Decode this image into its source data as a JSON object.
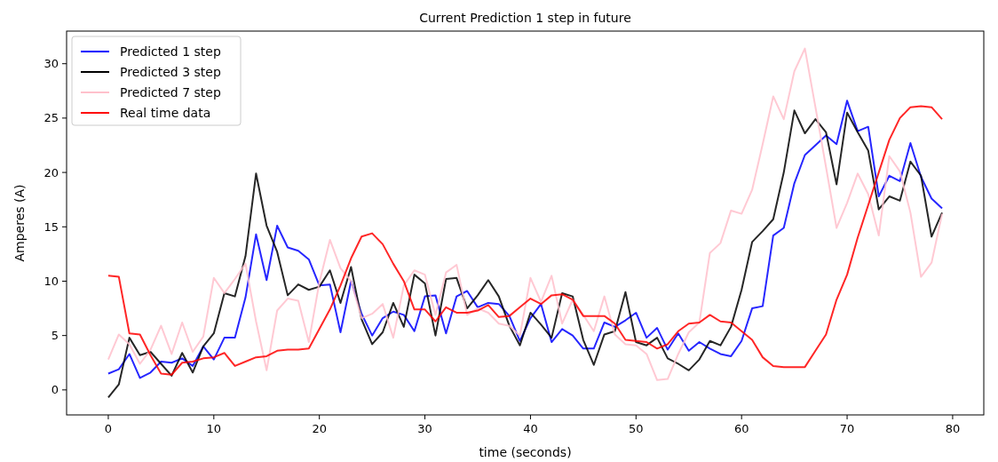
{
  "chart_data": {
    "type": "line",
    "title": "Current Prediction 1 step in future",
    "xlabel": "time (seconds)",
    "ylabel": "Amperes (A)",
    "x": [
      0,
      1,
      2,
      3,
      4,
      5,
      6,
      7,
      8,
      9,
      10,
      11,
      12,
      13,
      14,
      15,
      16,
      17,
      18,
      19,
      20,
      21,
      22,
      23,
      24,
      25,
      26,
      27,
      28,
      29,
      30,
      31,
      32,
      33,
      34,
      35,
      36,
      37,
      38,
      39,
      40,
      41,
      42,
      43,
      44,
      45,
      46,
      47,
      48,
      49,
      50,
      51,
      52,
      53,
      54,
      55,
      56,
      57,
      58,
      59,
      60,
      61,
      62,
      63,
      64,
      65,
      66,
      67,
      68,
      69,
      70,
      71,
      72,
      73,
      74,
      75,
      76,
      77,
      78,
      79
    ],
    "series": [
      {
        "name": "Predicted 1 step",
        "color": "#0000ff",
        "values": [
          1.5,
          1.9,
          3.3,
          1.1,
          1.6,
          2.6,
          2.5,
          2.9,
          2.2,
          4,
          2.8,
          4.8,
          4.8,
          8.5,
          14.3,
          10.1,
          15.1,
          13.1,
          12.8,
          12,
          9.6,
          9.7,
          5.3,
          10,
          7,
          5,
          6.6,
          7.2,
          6.9,
          5.4,
          8.6,
          8.7,
          5.2,
          8.6,
          9.1,
          7.6,
          8,
          7.9,
          6.8,
          4.5,
          6.6,
          7.9,
          4.4,
          5.6,
          5,
          3.8,
          3.8,
          6.2,
          5.8,
          6.4,
          7.1,
          4.8,
          5.7,
          3.7,
          5.2,
          3.6,
          4.4,
          3.8,
          3.3,
          3.1,
          4.5,
          7.5,
          7.7,
          14.2,
          14.9,
          19,
          21.6,
          22.5,
          23.4,
          22.6,
          26.6,
          23.8,
          24.2,
          17.8,
          19.7,
          19.2,
          22.7,
          19.6,
          17.6,
          16.7
        ]
      },
      {
        "name": "Predicted 3 step",
        "color": "#000000",
        "values": [
          -0.7,
          0.5,
          4.8,
          3.2,
          3.5,
          2.4,
          1.3,
          3.4,
          1.6,
          4,
          5.2,
          8.9,
          8.6,
          12.3,
          19.9,
          15.1,
          12.7,
          8.7,
          9.7,
          9.2,
          9.5,
          11,
          8,
          11.3,
          6.5,
          4.2,
          5.3,
          8,
          5.8,
          10.6,
          9.8,
          5,
          10.2,
          10.3,
          7.5,
          8.7,
          10.1,
          8.6,
          5.9,
          4.1,
          7.1,
          6,
          4.8,
          8.9,
          8.6,
          4.6,
          2.3,
          5.1,
          5.4,
          9,
          4.4,
          4.1,
          4.8,
          2.9,
          2.4,
          1.8,
          2.8,
          4.5,
          4.1,
          5.8,
          9.2,
          13.6,
          14.6,
          15.7,
          20,
          25.7,
          23.6,
          24.9,
          23.7,
          18.9,
          25.5,
          23.7,
          22,
          16.6,
          17.8,
          17.4,
          21,
          19.7,
          14.1,
          16.3
        ]
      },
      {
        "name": "Predicted 7 step",
        "color": "#ffc0cb",
        "values": [
          2.8,
          5.1,
          4.2,
          2.4,
          3.7,
          5.9,
          3.3,
          6.2,
          3.5,
          4.9,
          10.3,
          8.9,
          10.2,
          11.6,
          6.3,
          1.8,
          7.3,
          8.4,
          8.2,
          4.4,
          9.9,
          13.8,
          11.2,
          10,
          6.6,
          7,
          7.9,
          4.8,
          9.6,
          11,
          10.6,
          6.9,
          10.8,
          11.5,
          6.9,
          7.5,
          7.1,
          6.1,
          5.9,
          5,
          10.3,
          8.1,
          10.5,
          6.1,
          8.3,
          6.9,
          5.4,
          8.6,
          5.1,
          4.2,
          4.1,
          3.3,
          0.9,
          1,
          3.3,
          5.3,
          6.2,
          12.6,
          13.5,
          16.5,
          16.2,
          18.4,
          22.6,
          27,
          24.9,
          29.3,
          31.4,
          26,
          20.5,
          14.9,
          17.2,
          19.9,
          18,
          14.2,
          21.5,
          20.1,
          16.3,
          10.4,
          11.7,
          16.2
        ]
      },
      {
        "name": "Real time data",
        "color": "#ff0000",
        "values": [
          10.5,
          10.4,
          5.2,
          5.1,
          3.2,
          1.5,
          1.4,
          2.5,
          2.6,
          2.9,
          3,
          3.4,
          2.2,
          2.6,
          3,
          3.1,
          3.6,
          3.7,
          3.7,
          3.8,
          5.6,
          7.4,
          9.6,
          12.1,
          14.1,
          14.4,
          13.4,
          11.6,
          10,
          7.4,
          7.4,
          6.3,
          7.6,
          7.1,
          7.1,
          7.3,
          7.8,
          6.7,
          6.8,
          7.6,
          8.4,
          7.9,
          8.7,
          8.8,
          8.3,
          6.8,
          6.8,
          6.8,
          6.1,
          4.6,
          4.5,
          4.4,
          3.8,
          4.2,
          5.4,
          6.1,
          6.2,
          6.9,
          6.3,
          6.2,
          5.4,
          4.6,
          3,
          2.2,
          2.1,
          2.1,
          2.1,
          3.6,
          5.1,
          8.3,
          10.6,
          14,
          17,
          20,
          23,
          25,
          26,
          26.1,
          26,
          24.9
        ]
      }
    ],
    "xlim": [
      -3.95,
      82.95
    ],
    "xticks": [
      0,
      10,
      20,
      30,
      40,
      50,
      60,
      70,
      80
    ],
    "ylim": [
      -2.3,
      33
    ],
    "yticks": [
      0,
      5,
      10,
      15,
      20,
      25,
      30
    ],
    "legend": "top left",
    "grid": false,
    "line_style": "solid",
    "marker": "none"
  }
}
